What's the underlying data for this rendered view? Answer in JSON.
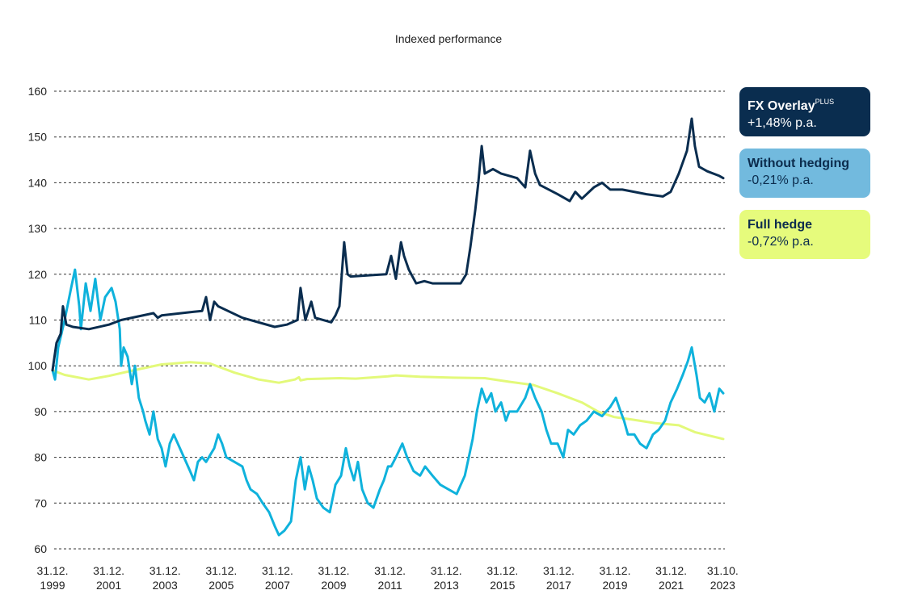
{
  "chart_data": {
    "type": "line",
    "title": "Indexed performance",
    "xlabel": "",
    "ylabel": "",
    "ylim": [
      60,
      160
    ],
    "yticks": [
      60,
      70,
      80,
      90,
      100,
      110,
      120,
      130,
      140,
      150,
      160
    ],
    "xlim": [
      2000.0,
      2023.85
    ],
    "xticks": [
      {
        "x": 2000.0,
        "line1": "31.12.",
        "line2": "1999"
      },
      {
        "x": 2002.0,
        "line1": "31.12.",
        "line2": "2001"
      },
      {
        "x": 2004.0,
        "line1": "31.12.",
        "line2": "2003"
      },
      {
        "x": 2006.0,
        "line1": "31.12.",
        "line2": "2005"
      },
      {
        "x": 2008.0,
        "line1": "31.12.",
        "line2": "2007"
      },
      {
        "x": 2010.0,
        "line1": "31.12.",
        "line2": "2009"
      },
      {
        "x": 2012.0,
        "line1": "31.12.",
        "line2": "2011"
      },
      {
        "x": 2014.0,
        "line1": "31.12.",
        "line2": "2013"
      },
      {
        "x": 2016.0,
        "line1": "31.12.",
        "line2": "2015"
      },
      {
        "x": 2018.0,
        "line1": "31.12.",
        "line2": "2017"
      },
      {
        "x": 2020.0,
        "line1": "31.12.",
        "line2": "2019"
      },
      {
        "x": 2022.0,
        "line1": "31.12.",
        "line2": "2021"
      },
      {
        "x": 2023.83,
        "line1": "31.10.",
        "line2": "2023"
      }
    ],
    "grid": true,
    "legend_placement": "right",
    "series": [
      {
        "name": "Full hedge",
        "name_sup": "",
        "value_label": "-0,72% p.a.",
        "color": "#e3f97a",
        "legend_bg": "#e6fb7c",
        "legend_fg": "#0b2c4d",
        "points": [
          [
            2000.0,
            99
          ],
          [
            2000.43,
            98
          ],
          [
            2001.29,
            97
          ],
          [
            2002.01,
            97.8
          ],
          [
            2002.87,
            99
          ],
          [
            2003.88,
            100.3
          ],
          [
            2004.89,
            100.8
          ],
          [
            2005.6,
            100.5
          ],
          [
            2006.47,
            98.5
          ],
          [
            2007.33,
            97
          ],
          [
            2008.05,
            96.3
          ],
          [
            2008.62,
            97
          ],
          [
            2008.76,
            97.5
          ],
          [
            2008.82,
            96.8
          ],
          [
            2009.05,
            97.1
          ],
          [
            2010.2,
            97.3
          ],
          [
            2010.78,
            97.2
          ],
          [
            2011.93,
            97.7
          ],
          [
            2012.21,
            97.9
          ],
          [
            2013.07,
            97.6
          ],
          [
            2014.22,
            97.4
          ],
          [
            2015.37,
            97.3
          ],
          [
            2016.24,
            96.5
          ],
          [
            2017.1,
            95.8
          ],
          [
            2017.96,
            94
          ],
          [
            2018.82,
            92
          ],
          [
            2019.4,
            90
          ],
          [
            2019.97,
            88.8
          ],
          [
            2020.55,
            88.3
          ],
          [
            2021.41,
            87.5
          ],
          [
            2022.27,
            87
          ],
          [
            2022.84,
            85.5
          ],
          [
            2023.85,
            84
          ]
        ]
      },
      {
        "name": "Without hedging",
        "name_sup": "",
        "value_label": "-0,21% p.a.",
        "color": "#0fb2dc",
        "legend_bg": "#72bade",
        "legend_fg": "#0b2c4d",
        "points": [
          [
            2000.0,
            99
          ],
          [
            2000.09,
            97
          ],
          [
            2000.2,
            104
          ],
          [
            2000.43,
            110
          ],
          [
            2000.66,
            117
          ],
          [
            2000.8,
            121
          ],
          [
            2000.95,
            113
          ],
          [
            2001.01,
            108
          ],
          [
            2001.18,
            118
          ],
          [
            2001.35,
            112
          ],
          [
            2001.52,
            119
          ],
          [
            2001.7,
            110
          ],
          [
            2001.87,
            115
          ],
          [
            2002.1,
            117
          ],
          [
            2002.24,
            114
          ],
          [
            2002.39,
            108
          ],
          [
            2002.44,
            100
          ],
          [
            2002.53,
            104
          ],
          [
            2002.67,
            102
          ],
          [
            2002.82,
            96
          ],
          [
            2002.93,
            100
          ],
          [
            2003.07,
            93
          ],
          [
            2003.22,
            90
          ],
          [
            2003.3,
            88
          ],
          [
            2003.45,
            85
          ],
          [
            2003.59,
            90
          ],
          [
            2003.74,
            84
          ],
          [
            2003.88,
            82
          ],
          [
            2004.02,
            78
          ],
          [
            2004.17,
            83
          ],
          [
            2004.31,
            85
          ],
          [
            2004.6,
            81
          ],
          [
            2004.89,
            77
          ],
          [
            2005.03,
            75
          ],
          [
            2005.17,
            79
          ],
          [
            2005.32,
            80
          ],
          [
            2005.46,
            79
          ],
          [
            2005.75,
            82
          ],
          [
            2005.89,
            85
          ],
          [
            2006.03,
            83
          ],
          [
            2006.18,
            80
          ],
          [
            2006.47,
            79
          ],
          [
            2006.75,
            78
          ],
          [
            2006.9,
            75
          ],
          [
            2007.04,
            73
          ],
          [
            2007.27,
            72
          ],
          [
            2007.47,
            70
          ],
          [
            2007.7,
            68
          ],
          [
            2007.9,
            65
          ],
          [
            2008.05,
            63
          ],
          [
            2008.25,
            64
          ],
          [
            2008.48,
            66
          ],
          [
            2008.65,
            75
          ],
          [
            2008.82,
            80
          ],
          [
            2008.97,
            73
          ],
          [
            2009.11,
            78
          ],
          [
            2009.25,
            75
          ],
          [
            2009.4,
            71
          ],
          [
            2009.63,
            69
          ],
          [
            2009.86,
            68
          ],
          [
            2010.06,
            74
          ],
          [
            2010.26,
            76
          ],
          [
            2010.43,
            82
          ],
          [
            2010.57,
            78
          ],
          [
            2010.72,
            75
          ],
          [
            2010.86,
            79
          ],
          [
            2011.01,
            73
          ],
          [
            2011.21,
            70
          ],
          [
            2011.41,
            69
          ],
          [
            2011.64,
            73
          ],
          [
            2011.78,
            75
          ],
          [
            2011.93,
            78
          ],
          [
            2012.04,
            78
          ],
          [
            2012.21,
            80
          ],
          [
            2012.44,
            83
          ],
          [
            2012.61,
            80
          ],
          [
            2012.84,
            77
          ],
          [
            2013.07,
            76
          ],
          [
            2013.25,
            78
          ],
          [
            2013.51,
            76
          ],
          [
            2013.79,
            74
          ],
          [
            2014.08,
            73
          ],
          [
            2014.37,
            72
          ],
          [
            2014.66,
            76
          ],
          [
            2014.8,
            80
          ],
          [
            2014.94,
            84
          ],
          [
            2015.09,
            90
          ],
          [
            2015.26,
            95
          ],
          [
            2015.43,
            92
          ],
          [
            2015.6,
            94
          ],
          [
            2015.75,
            90
          ],
          [
            2015.95,
            92
          ],
          [
            2016.12,
            88
          ],
          [
            2016.24,
            90
          ],
          [
            2016.52,
            90
          ],
          [
            2016.81,
            93
          ],
          [
            2016.98,
            96
          ],
          [
            2017.16,
            93
          ],
          [
            2017.39,
            90
          ],
          [
            2017.56,
            86
          ],
          [
            2017.73,
            83
          ],
          [
            2017.96,
            83
          ],
          [
            2018.16,
            80
          ],
          [
            2018.33,
            86
          ],
          [
            2018.53,
            85
          ],
          [
            2018.76,
            87
          ],
          [
            2018.99,
            88
          ],
          [
            2019.25,
            90
          ],
          [
            2019.54,
            89
          ],
          [
            2019.83,
            91
          ],
          [
            2020.03,
            93
          ],
          [
            2020.2,
            90
          ],
          [
            2020.32,
            88
          ],
          [
            2020.46,
            85
          ],
          [
            2020.69,
            85
          ],
          [
            2020.89,
            83
          ],
          [
            2021.12,
            82
          ],
          [
            2021.35,
            85
          ],
          [
            2021.55,
            86
          ],
          [
            2021.78,
            88
          ],
          [
            2021.98,
            92
          ],
          [
            2022.21,
            95
          ],
          [
            2022.41,
            98
          ],
          [
            2022.59,
            101
          ],
          [
            2022.73,
            104
          ],
          [
            2022.9,
            98
          ],
          [
            2023.02,
            93
          ],
          [
            2023.19,
            92
          ],
          [
            2023.36,
            94
          ],
          [
            2023.53,
            90
          ],
          [
            2023.71,
            95
          ],
          [
            2023.85,
            94
          ]
        ]
      },
      {
        "name": "FX Overlay",
        "name_sup": "PLUS",
        "value_label": "+1,48% p.a.",
        "color": "#0a2d4f",
        "legend_bg": "#0a2d4f",
        "legend_fg": "#ffffff",
        "points": [
          [
            2000.0,
            99
          ],
          [
            2000.14,
            105
          ],
          [
            2000.29,
            107
          ],
          [
            2000.37,
            113
          ],
          [
            2000.49,
            109
          ],
          [
            2000.72,
            108.5
          ],
          [
            2001.29,
            108
          ],
          [
            2002.01,
            109
          ],
          [
            2002.44,
            110
          ],
          [
            2003.59,
            111.5
          ],
          [
            2003.74,
            110.5
          ],
          [
            2003.88,
            111
          ],
          [
            2005.03,
            111.8
          ],
          [
            2005.32,
            112
          ],
          [
            2005.46,
            115
          ],
          [
            2005.6,
            110
          ],
          [
            2005.75,
            114
          ],
          [
            2005.89,
            113
          ],
          [
            2006.75,
            110.5
          ],
          [
            2007.9,
            108.5
          ],
          [
            2008.33,
            109
          ],
          [
            2008.71,
            110
          ],
          [
            2008.82,
            117
          ],
          [
            2008.99,
            110
          ],
          [
            2009.2,
            114
          ],
          [
            2009.34,
            110.5
          ],
          [
            2009.91,
            109.5
          ],
          [
            2010.06,
            111
          ],
          [
            2010.2,
            113
          ],
          [
            2010.37,
            127
          ],
          [
            2010.49,
            120
          ],
          [
            2010.6,
            119.5
          ],
          [
            2011.35,
            119.8
          ],
          [
            2011.87,
            120
          ],
          [
            2012.04,
            124
          ],
          [
            2012.21,
            119
          ],
          [
            2012.39,
            127
          ],
          [
            2012.5,
            124
          ],
          [
            2012.67,
            121
          ],
          [
            2012.93,
            118
          ],
          [
            2013.22,
            118.5
          ],
          [
            2013.51,
            118
          ],
          [
            2014.51,
            118
          ],
          [
            2014.71,
            120
          ],
          [
            2014.86,
            126
          ],
          [
            2015.03,
            134
          ],
          [
            2015.14,
            140
          ],
          [
            2015.26,
            148
          ],
          [
            2015.37,
            142
          ],
          [
            2015.66,
            143
          ],
          [
            2015.95,
            142
          ],
          [
            2016.52,
            141
          ],
          [
            2016.81,
            139
          ],
          [
            2016.98,
            147
          ],
          [
            2017.16,
            142
          ],
          [
            2017.33,
            139.5
          ],
          [
            2017.96,
            137.5
          ],
          [
            2018.39,
            136
          ],
          [
            2018.59,
            138
          ],
          [
            2018.82,
            136.5
          ],
          [
            2019.25,
            139
          ],
          [
            2019.54,
            140
          ],
          [
            2019.83,
            138.5
          ],
          [
            2020.26,
            138.5
          ],
          [
            2021.12,
            137.5
          ],
          [
            2021.7,
            137
          ],
          [
            2021.98,
            138
          ],
          [
            2022.27,
            142
          ],
          [
            2022.56,
            147
          ],
          [
            2022.73,
            154
          ],
          [
            2022.84,
            148
          ],
          [
            2022.99,
            143.5
          ],
          [
            2023.28,
            142.5
          ],
          [
            2023.71,
            141.5
          ],
          [
            2023.85,
            141
          ]
        ]
      }
    ]
  }
}
